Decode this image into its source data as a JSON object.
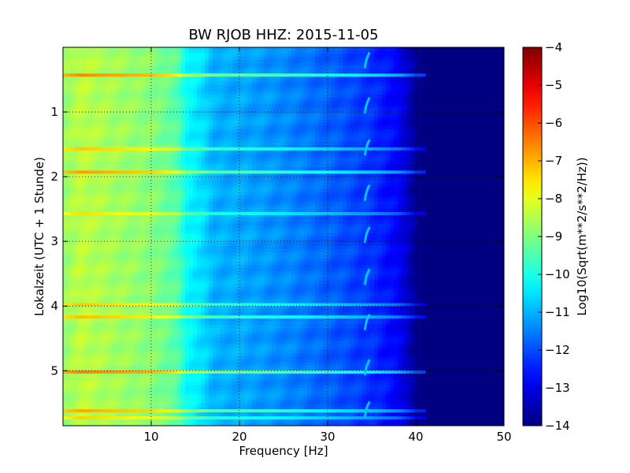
{
  "chart_data": {
    "type": "heatmap",
    "title": "BW RJOB HHZ: 2015-11-05",
    "xlabel": "Frequency [Hz]",
    "ylabel": "Lokalzeit (UTC + 1 Stunde)",
    "xlim": [
      0,
      50
    ],
    "ylim": [
      5.85,
      0.0
    ],
    "y_inverted": true,
    "x_ticks": [
      10,
      20,
      30,
      40,
      50
    ],
    "x_tick_labels": [
      "10",
      "20",
      "30",
      "40",
      "50"
    ],
    "y_ticks": [
      1,
      2,
      3,
      4,
      5
    ],
    "y_tick_labels": [
      "1",
      "2",
      "3",
      "4",
      "5"
    ],
    "grid": true,
    "colormap": "jet",
    "colorbar": {
      "label": "Log10(Sqrt(m**2/s**2/Hz))",
      "range": [
        -14,
        -4
      ],
      "ticks": [
        -4,
        -5,
        -6,
        -7,
        -8,
        -9,
        -10,
        -11,
        -12,
        -13,
        -14
      ],
      "tick_labels": [
        "−4",
        "−5",
        "−6",
        "−7",
        "−8",
        "−9",
        "−10",
        "−11",
        "−12",
        "−13",
        "−14"
      ]
    },
    "spectral_profile": {
      "frequency_hz": [
        0,
        2,
        5,
        10,
        13,
        14,
        16,
        17,
        20,
        25,
        30,
        35,
        38,
        39,
        40,
        41,
        50
      ],
      "log10_value": [
        -8.8,
        -8.4,
        -8.6,
        -8.9,
        -9.4,
        -10.2,
        -10.6,
        -11.0,
        -11.1,
        -11.4,
        -11.8,
        -12.3,
        -12.8,
        -13.3,
        -13.8,
        -14.0,
        -14.0
      ]
    },
    "broadband_events": [
      {
        "time": 0.43,
        "amplitude": 1.8
      },
      {
        "time": 1.57,
        "amplitude": 1.2
      },
      {
        "time": 1.93,
        "amplitude": 1.6
      },
      {
        "time": 2.57,
        "amplitude": 1.0
      },
      {
        "time": 3.98,
        "amplitude": 1.2
      },
      {
        "time": 4.17,
        "amplitude": 1.3
      },
      {
        "time": 5.02,
        "amplitude": 1.9
      },
      {
        "time": 5.62,
        "amplitude": 1.5
      },
      {
        "time": 5.73,
        "amplitude": 1.1
      }
    ],
    "narrowband_feature": {
      "frequency_hz": 34.5,
      "times": [
        0.2,
        0.9,
        1.55,
        2.25,
        2.9,
        3.55,
        4.25,
        4.95,
        5.6
      ],
      "value": -10.8
    }
  }
}
